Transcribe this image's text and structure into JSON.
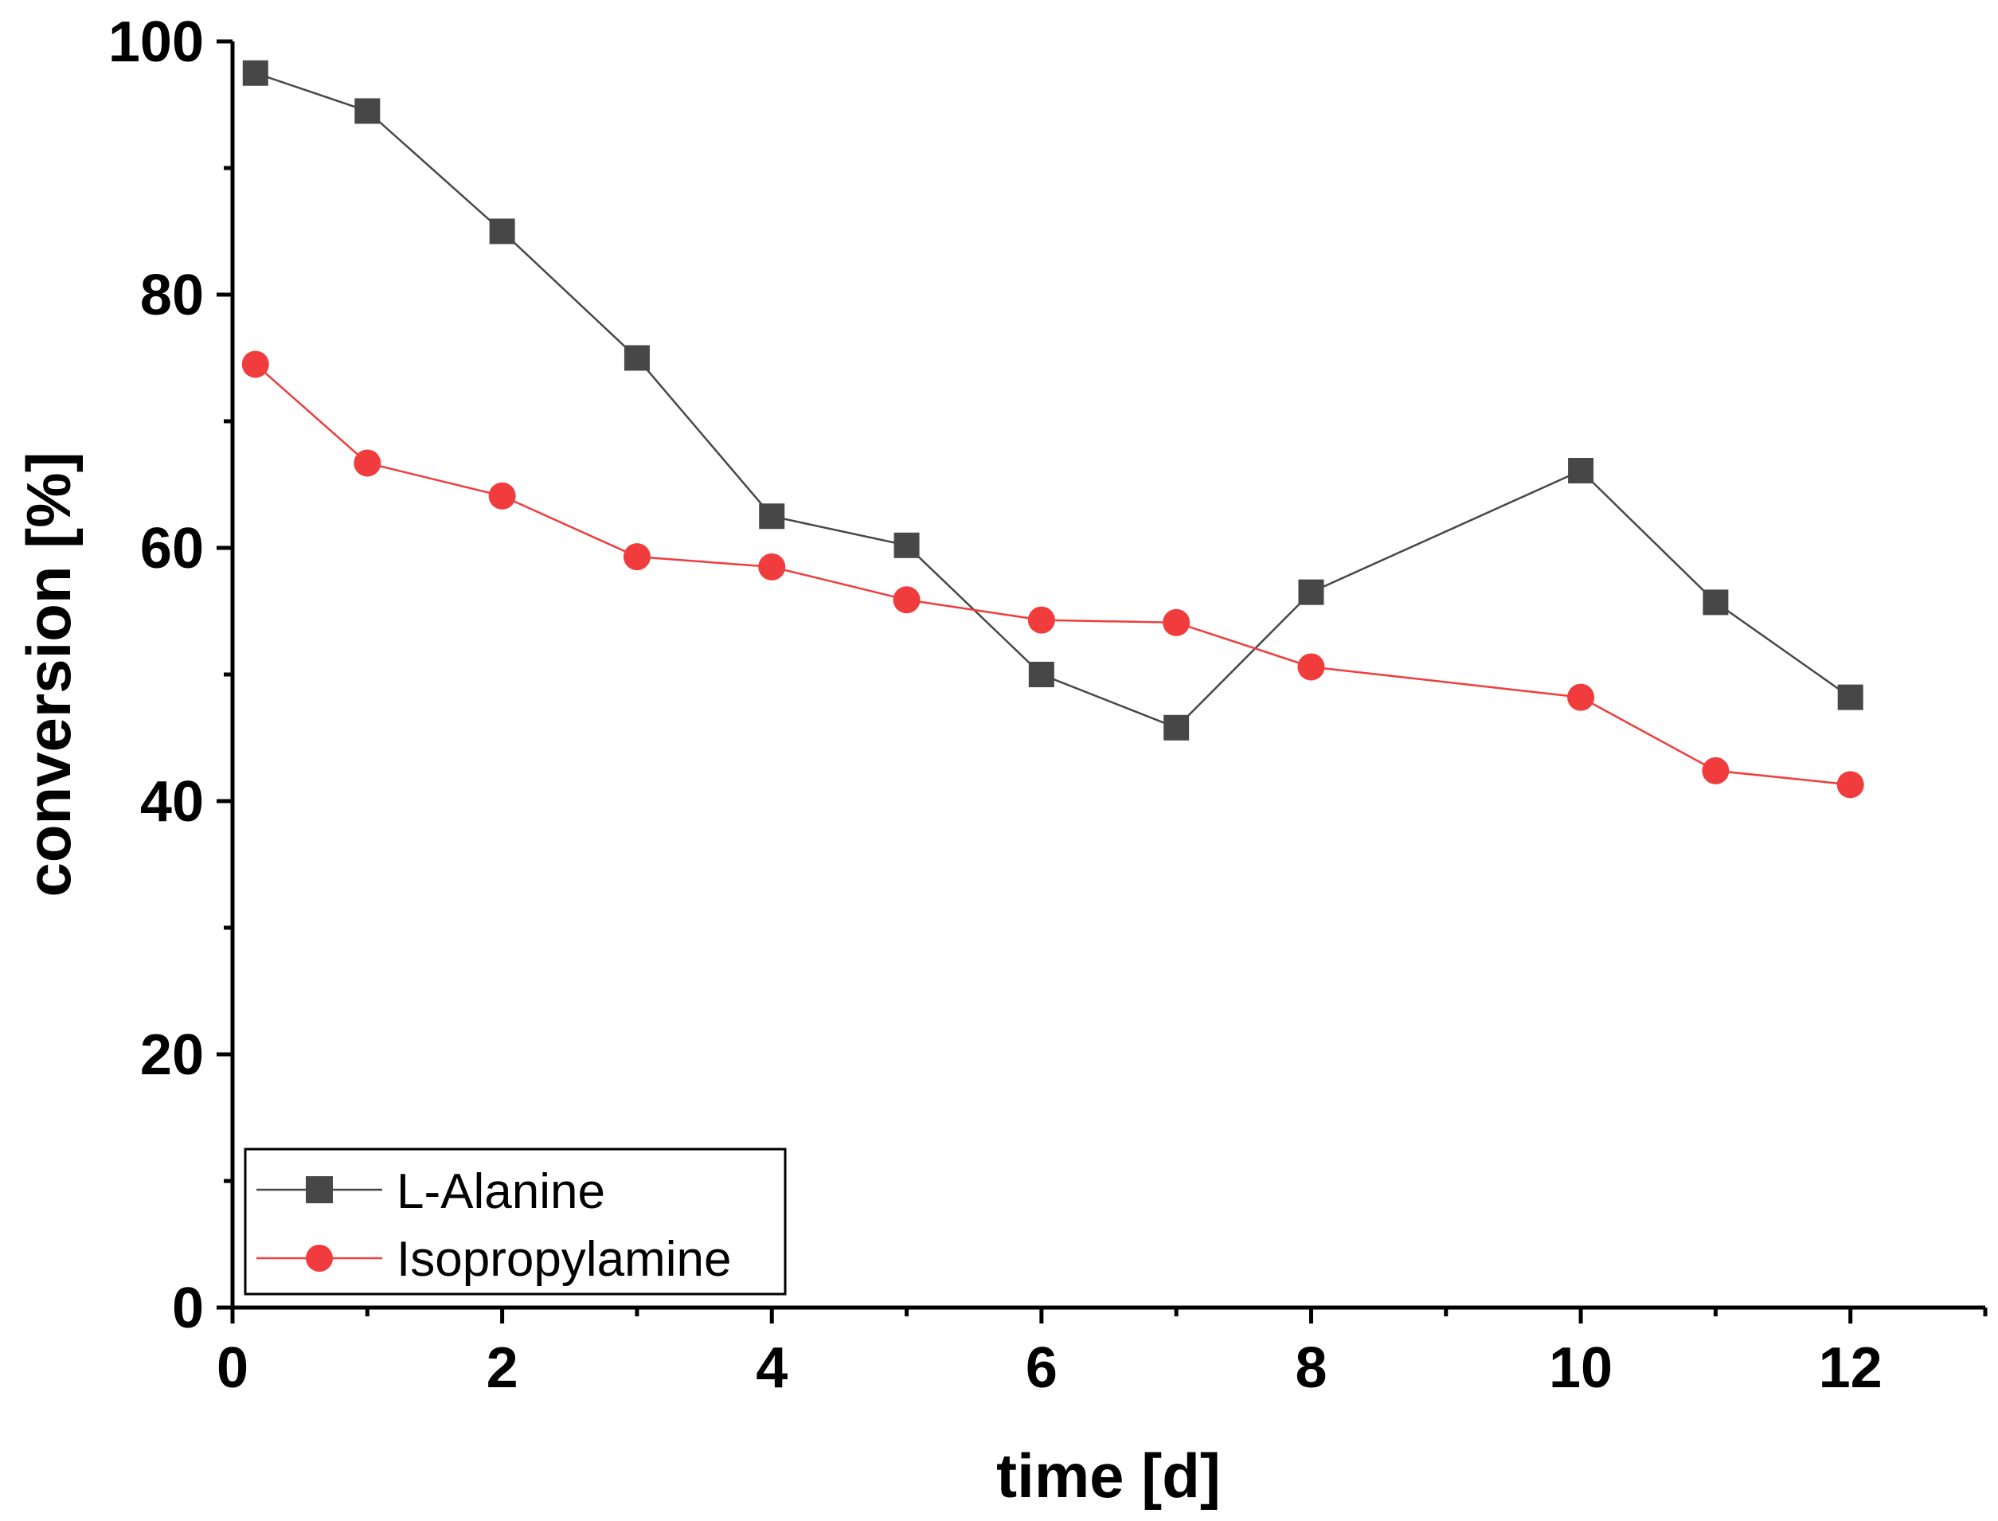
{
  "chart_data": {
    "type": "line",
    "title": "",
    "xlabel": "time [d]",
    "ylabel": "conversion [%]",
    "xlim": [
      0,
      13
    ],
    "ylim": [
      0,
      100
    ],
    "xticks": [
      0,
      2,
      4,
      6,
      8,
      10,
      12
    ],
    "yticks": [
      0,
      20,
      40,
      60,
      80,
      100
    ],
    "grid": false,
    "legend_position": "bottom-left",
    "series": [
      {
        "name": "L-Alanine",
        "marker": "square",
        "color": "#474747",
        "x": [
          0.17,
          1,
          2,
          3,
          4,
          5,
          6,
          7,
          8,
          10,
          11,
          12
        ],
        "y": [
          97.5,
          94.5,
          85.0,
          75.0,
          62.5,
          60.2,
          50.0,
          45.8,
          56.5,
          66.1,
          55.7,
          48.2
        ]
      },
      {
        "name": "Isopropylamine",
        "marker": "circle",
        "color": "#f03c3c",
        "x": [
          0.17,
          1,
          2,
          3,
          4,
          5,
          6,
          7,
          8,
          10,
          11,
          12
        ],
        "y": [
          74.5,
          66.7,
          64.1,
          59.3,
          58.5,
          55.9,
          54.3,
          54.1,
          50.6,
          48.2,
          42.4,
          41.3
        ]
      }
    ]
  }
}
